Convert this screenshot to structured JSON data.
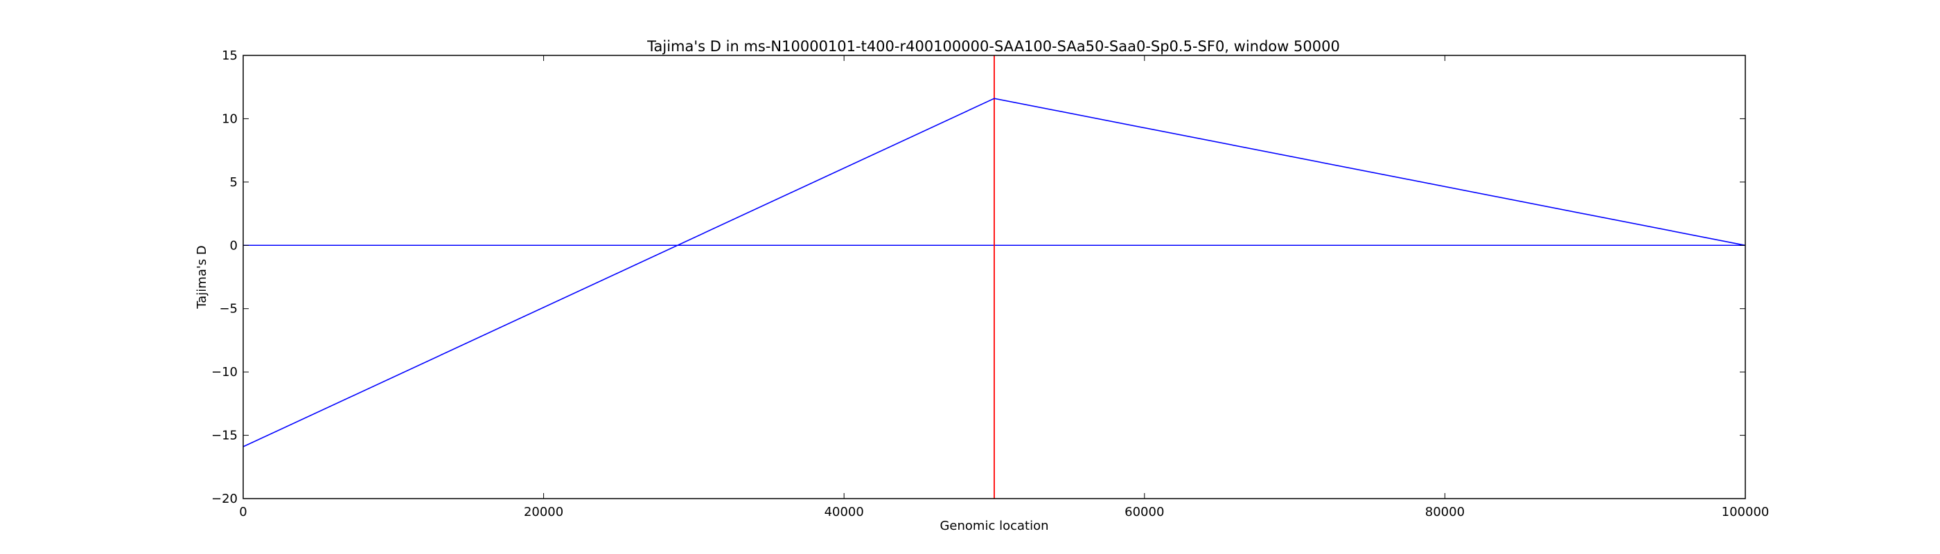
{
  "chart_data": {
    "type": "line",
    "title": "Tajima's D in ms-N10000101-t400-r400100000-SAA100-SAa50-Saa0-Sp0.5-SF0, window 50000",
    "xlabel": "Genomic location",
    "ylabel": "Tajima's D",
    "xlim": [
      0,
      100000
    ],
    "ylim": [
      -20,
      15
    ],
    "xticks": [
      0,
      20000,
      40000,
      60000,
      80000,
      100000
    ],
    "yticks": [
      -20,
      -15,
      -10,
      -5,
      0,
      5,
      10,
      15
    ],
    "grid": false,
    "series": [
      {
        "x": [
          0,
          50000,
          100000
        ],
        "values": [
          -15.9,
          11.6,
          0.0
        ],
        "color": "#0000ff"
      }
    ],
    "reference_lines": [
      {
        "orientation": "horizontal",
        "value": 0,
        "color": "#0000ff"
      },
      {
        "orientation": "vertical",
        "value": 50000,
        "color": "#ff0000"
      }
    ]
  }
}
